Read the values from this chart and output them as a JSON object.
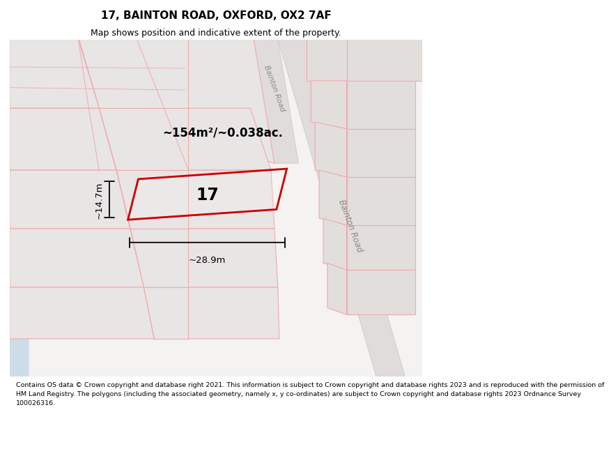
{
  "title": "17, BAINTON ROAD, OXFORD, OX2 7AF",
  "subtitle": "Map shows position and indicative extent of the property.",
  "footer_line1": "Contains OS data © Crown copyright and database right 2021. This information is subject to Crown copyright and database rights",
  "footer_line2": "2023 and is reproduced with the permission of HM Land Registry. The polygons (including the associated geometry, namely x, y",
  "footer_line3": "co-ordinates) are subject to Crown copyright and database rights 2023 Ordnance Survey 100026316.",
  "area_label": "~154m²/~0.038ac.",
  "width_label": "~28.9m",
  "height_label": "~14.7m",
  "property_number": "17",
  "map_bg": "#f5f2f2",
  "block_fill": "#e8e5e5",
  "block_fill_dark": "#dedad9",
  "road_fill": "#e0dcdc",
  "block_edge_pink": "#f0aaaa",
  "block_edge_gray": "#c8c4c4",
  "property_color": "#cc0000",
  "water_color": "#ccdde8",
  "green_color": "#d8e8cc",
  "title_fontsize": 11,
  "subtitle_fontsize": 9,
  "footer_fontsize": 6.8
}
